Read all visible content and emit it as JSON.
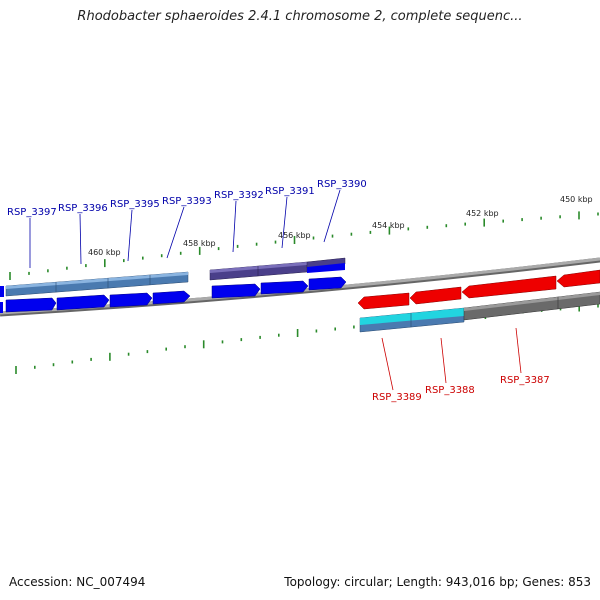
{
  "title": "Rhodobacter sphaeroides 2.4.1 chromosome 2, complete sequenc...",
  "footer": {
    "accession": "Accession: NC_007494",
    "summary": "Topology: circular; Length: 943,016 bp; Genes: 853"
  },
  "colors": {
    "forward_gene": "#0000ee",
    "reverse_gene": "#ee0000",
    "forward_label": "#0000aa",
    "reverse_label": "#cc0000",
    "backbone": "#888888",
    "tick": "#2a8a2a",
    "cog_steel": "#4a7ab0",
    "cog_purple": "#4a3f8a",
    "cog_cyan": "#22d4e0",
    "cog_gray": "#6a6a6a"
  },
  "scale_labels": [
    "450 kbp",
    "452 kbp",
    "454 kbp",
    "456 kbp",
    "458 kbp",
    "460 kbp"
  ],
  "forward_genes": [
    {
      "label": "RSP_3397"
    },
    {
      "label": "RSP_3396"
    },
    {
      "label": "RSP_3395"
    },
    {
      "label": "RSP_3393"
    },
    {
      "label": "RSP_3392"
    },
    {
      "label": "RSP_3391"
    },
    {
      "label": "RSP_3390"
    }
  ],
  "reverse_genes": [
    {
      "label": "RSP_3389"
    },
    {
      "label": "RSP_3388"
    },
    {
      "label": "RSP_3387"
    }
  ]
}
